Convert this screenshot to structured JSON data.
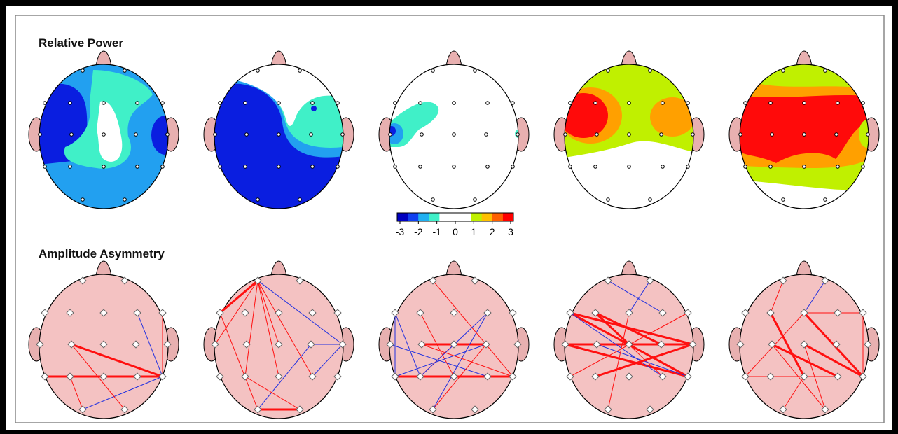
{
  "sections": [
    {
      "title": "Relative Power"
    },
    {
      "title": "Amplitude Asymmetry"
    }
  ],
  "colorbar": {
    "labels": [
      "-3",
      "-2",
      "-1",
      "0",
      "1",
      "2",
      "3"
    ]
  }
}
